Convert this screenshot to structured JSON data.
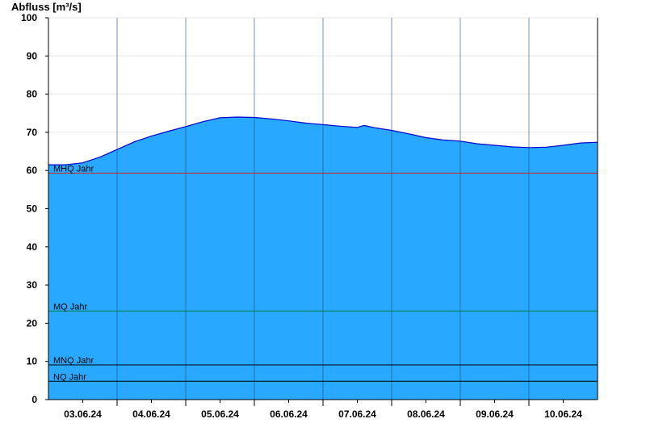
{
  "chart_data": {
    "type": "area",
    "title": "",
    "xlabel": "",
    "ylabel": "Abfluss [m³/s]",
    "ylim": [
      0,
      100
    ],
    "yticks": [
      0,
      10,
      20,
      30,
      40,
      50,
      60,
      70,
      80,
      90,
      100
    ],
    "xlim": [
      0,
      8
    ],
    "xtick_labels": [
      "03.06.24",
      "04.06.24",
      "05.06.24",
      "06.06.24",
      "07.06.24",
      "08.06.24",
      "09.06.24",
      "10.06.24"
    ],
    "grid": true,
    "fill_color": "#29A8FF",
    "line_color": "#0000CC",
    "series": [
      {
        "x": [
          0,
          0.25,
          0.5,
          0.75,
          1.0,
          1.25,
          1.5,
          1.75,
          2.0,
          2.25,
          2.5,
          2.75,
          3.0,
          3.25,
          3.5,
          3.75,
          4.0,
          4.25,
          4.5,
          4.6,
          4.75,
          5.0,
          5.25,
          5.5,
          5.75,
          6.0,
          6.25,
          6.5,
          6.75,
          7.0,
          7.25,
          7.5,
          7.75,
          8.0
        ],
        "values": [
          61.5,
          61.5,
          62.0,
          63.5,
          65.5,
          67.5,
          69.0,
          70.3,
          71.5,
          72.8,
          73.8,
          74.0,
          73.9,
          73.5,
          73.0,
          72.4,
          72.0,
          71.6,
          71.3,
          71.8,
          71.2,
          70.5,
          69.6,
          68.6,
          68.0,
          67.7,
          67.0,
          66.6,
          66.2,
          66.0,
          66.1,
          66.6,
          67.2,
          67.4
        ]
      }
    ],
    "reference_lines": [
      {
        "label": "MHQ Jahr",
        "value": 59.3,
        "color": "#D02020"
      },
      {
        "label": "MQ Jahr",
        "value": 23.2,
        "color": "#008040"
      },
      {
        "label": "MNQ Jahr",
        "value": 9.1,
        "color": "#000000"
      },
      {
        "label": "NQ Jahr",
        "value": 4.8,
        "color": "#000000"
      }
    ]
  }
}
